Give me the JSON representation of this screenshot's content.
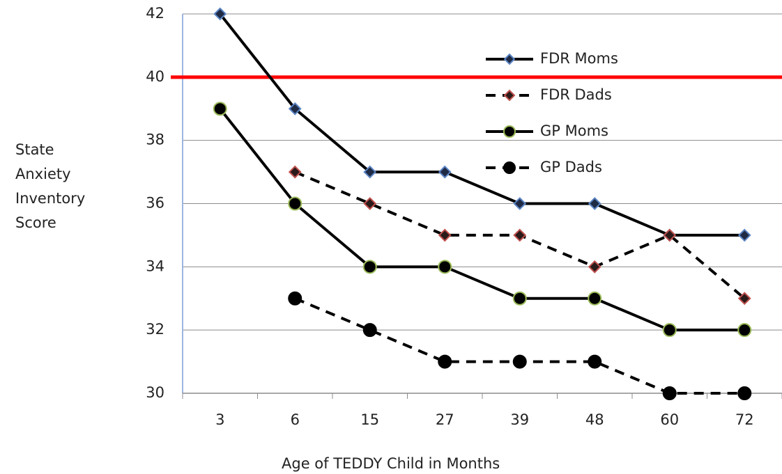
{
  "chart_data": {
    "type": "line",
    "categories": [
      "3",
      "6",
      "15",
      "27",
      "39",
      "48",
      "60",
      "72"
    ],
    "series": [
      {
        "name": "FDR Moms",
        "color": "#000000",
        "dash": false,
        "marker": "diamond",
        "marker_fill": "#1f2a44",
        "marker_edge": "#5b84c4",
        "values": [
          42,
          39,
          37,
          37,
          36,
          36,
          35,
          35
        ]
      },
      {
        "name": "FDR Dads",
        "color": "#000000",
        "dash": true,
        "marker": "diamond",
        "marker_fill": "#2a1a1a",
        "marker_edge": "#c0504d",
        "values": [
          null,
          37,
          36,
          35,
          35,
          34,
          35,
          33
        ]
      },
      {
        "name": "GP Moms",
        "color": "#000000",
        "dash": false,
        "marker": "circle",
        "marker_fill": "#000000",
        "marker_edge": "#9bbb59",
        "values": [
          39,
          36,
          34,
          34,
          33,
          33,
          32,
          32
        ]
      },
      {
        "name": "GP Dads",
        "color": "#000000",
        "dash": true,
        "marker": "circle",
        "marker_fill": "#000000",
        "marker_edge": "#000000",
        "values": [
          null,
          33,
          32,
          31,
          31,
          31,
          30,
          30
        ]
      }
    ],
    "reference_line": {
      "value": 40,
      "color": "#ff0000"
    },
    "ylim": [
      30,
      42
    ],
    "yticks": [
      30,
      32,
      34,
      36,
      38,
      40,
      42
    ],
    "grid": true,
    "xlabel": "Age of TEDDY Child in Months",
    "ylabel": [
      "State",
      "Anxiety",
      "Inventory",
      "Score"
    ],
    "legend": "upper right"
  }
}
